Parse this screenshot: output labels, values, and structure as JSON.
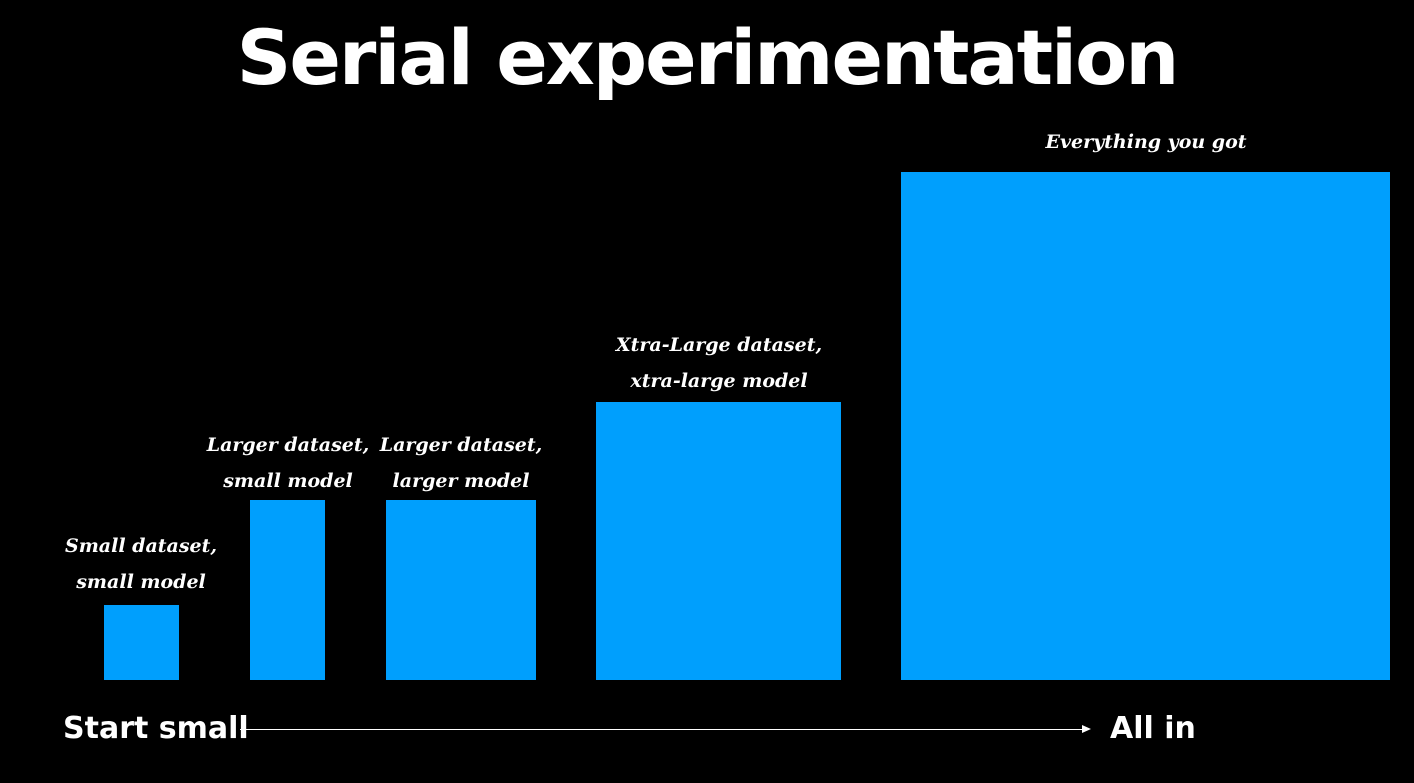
{
  "title": "Serial experimentation",
  "colors": {
    "background": "#000000",
    "block": "#009ffd",
    "text": "#ffffff"
  },
  "stages": [
    {
      "line1": "Small dataset,",
      "line2": "small model"
    },
    {
      "line1": "Larger dataset,",
      "line2": "small model"
    },
    {
      "line1": "Larger dataset,",
      "line2": "larger model"
    },
    {
      "line1": "Xtra-Large dataset,",
      "line2": "xtra-large model"
    },
    {
      "line1": "Everything you got",
      "line2": ""
    }
  ],
  "axis": {
    "start_label": "Start small",
    "end_label": "All in"
  }
}
